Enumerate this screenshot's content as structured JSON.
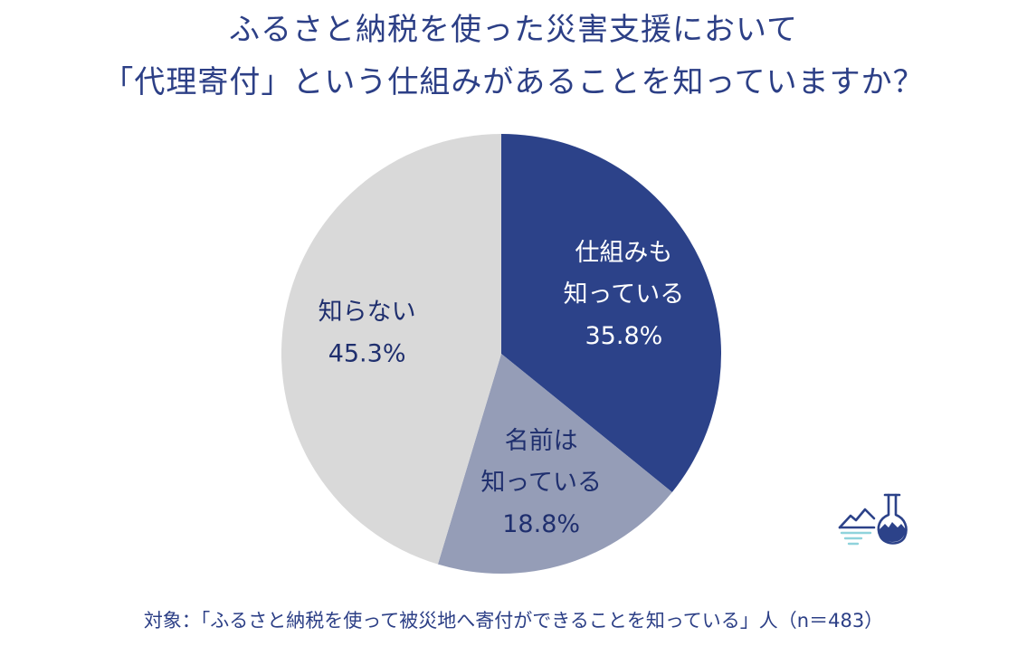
{
  "header": {
    "title_line1": "ふるさと納税を使った災害支援において",
    "title_line2": "「代理寄付」という仕組みがあることを知っていますか？"
  },
  "footer": {
    "note": "対象：「ふるさと納税を使って被災地へ寄付ができることを知っている」人（n＝483）"
  },
  "logo": {
    "icon": "flask-landscape-icon"
  },
  "chart_data": {
    "type": "pie",
    "title": "ふるさと納税を使った災害支援において「代理寄付」という仕組みがあることを知っていますか？",
    "start": "12 o'clock, clockwise",
    "legend": "none (labels inside slices)",
    "slices": [
      {
        "label_lines": [
          "仕組みも",
          "知っている"
        ],
        "value": 35.8,
        "value_label": "35.8%",
        "color": "#2c4289",
        "text_color": "#ffffff"
      },
      {
        "label_lines": [
          "名前は",
          "知っている"
        ],
        "value": 18.8,
        "value_label": "18.8%",
        "color": "#959db7",
        "text_color": "#1f2f6e"
      },
      {
        "label_lines": [
          "知らない"
        ],
        "value": 45.3,
        "value_label": "45.3%",
        "color": "#d9d9d9",
        "text_color": "#1f2f6e"
      }
    ]
  }
}
